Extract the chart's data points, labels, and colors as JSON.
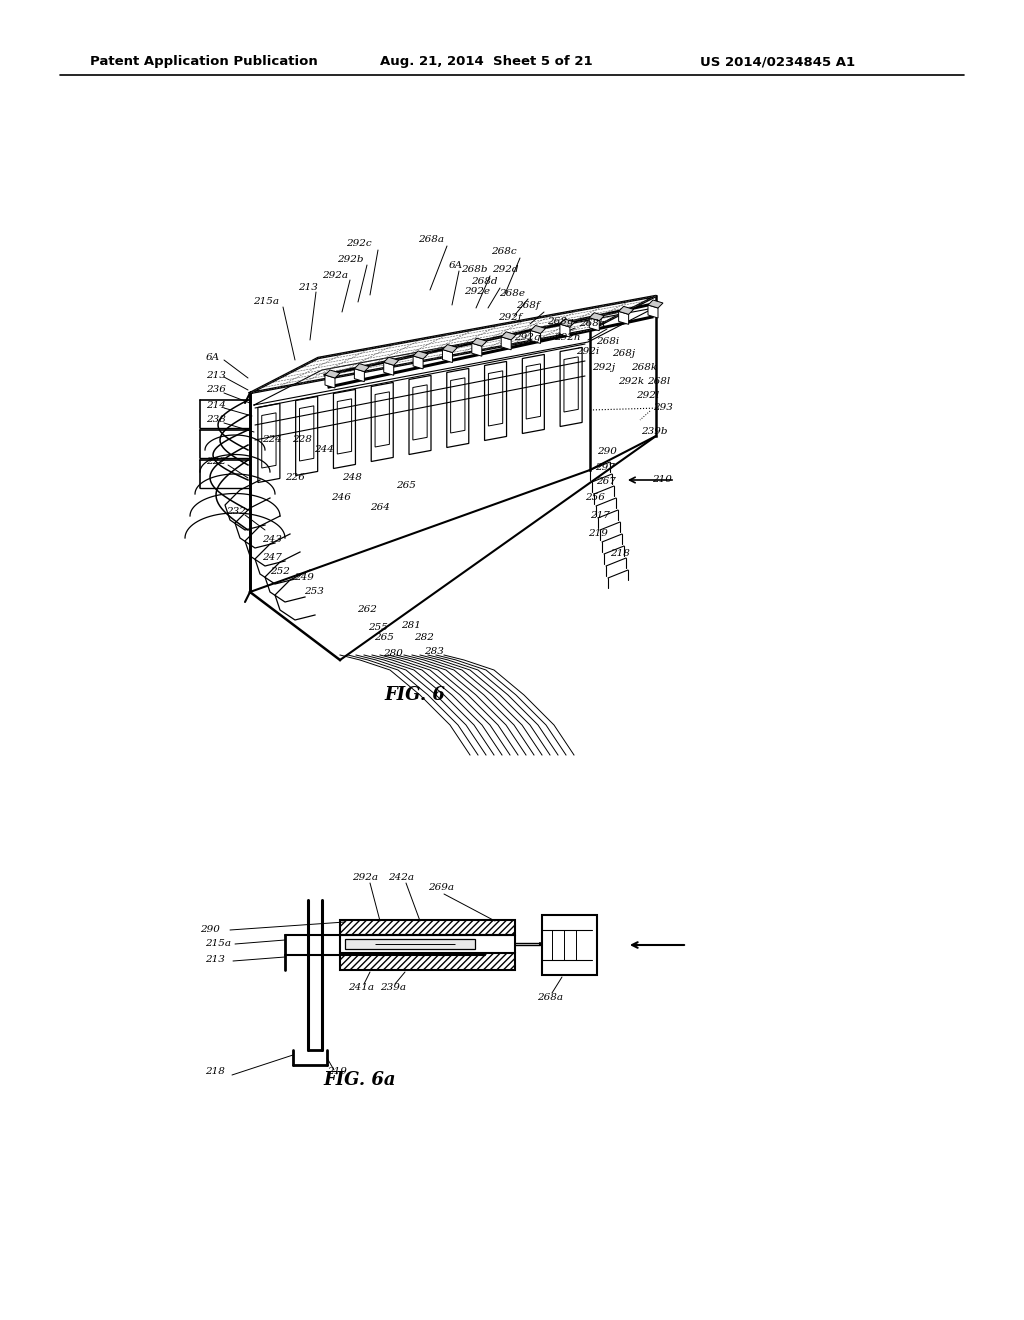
{
  "background_color": "#ffffff",
  "header_left": "Patent Application Publication",
  "header_mid": "Aug. 21, 2014  Sheet 5 of 21",
  "header_right": "US 2014/0234845 A1",
  "fig6_caption": "FIG. 6",
  "fig6a_caption": "FIG. 6a"
}
